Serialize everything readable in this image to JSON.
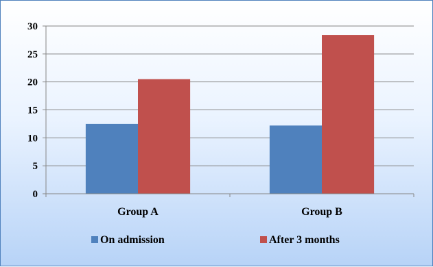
{
  "chart_data": {
    "type": "bar",
    "categories": [
      "Group A",
      "Group B"
    ],
    "series": [
      {
        "name": "On admission",
        "values": [
          12.5,
          12.2
        ],
        "color": "#4f81bd"
      },
      {
        "name": "After 3 months",
        "values": [
          20.5,
          28.4
        ],
        "color": "#c0504d"
      }
    ],
    "title": "",
    "xlabel": "",
    "ylabel": "",
    "ylim": [
      0,
      30
    ],
    "yticks": [
      0,
      5,
      10,
      15,
      20,
      25,
      30
    ],
    "grid": true,
    "legend_position": "bottom",
    "colors": {
      "frame_border": "#4f81bd",
      "gridline": "#868686",
      "axis": "#868686"
    }
  }
}
